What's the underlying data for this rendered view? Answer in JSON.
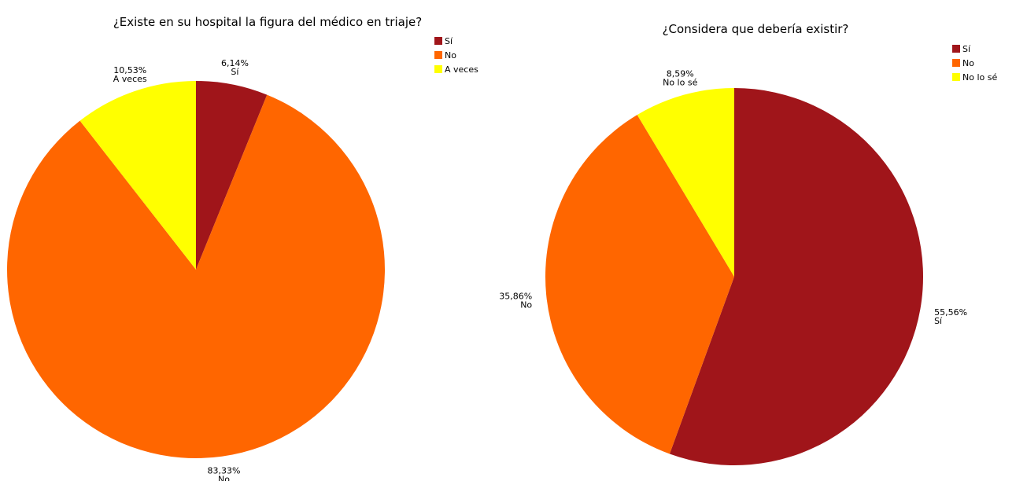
{
  "chart_data": [
    {
      "type": "pie",
      "title": "¿Existe en su hospital la figura del médico en triaje?",
      "categories": [
        "Sí",
        "No",
        "A veces"
      ],
      "values": [
        6.14,
        83.33,
        10.53
      ],
      "value_labels": [
        "6,14%",
        "83,33%",
        "10,53%"
      ],
      "colors": [
        "#a0151a",
        "#ff6600",
        "#ffff00"
      ]
    },
    {
      "type": "pie",
      "title": "¿Considera que debería existir?",
      "categories": [
        "Sí",
        "No",
        "No lo sé"
      ],
      "values": [
        55.56,
        35.86,
        8.59
      ],
      "value_labels": [
        "55,56%",
        "35,86%",
        "8,59%"
      ],
      "colors": [
        "#a0151a",
        "#ff6600",
        "#ffff00"
      ]
    }
  ]
}
